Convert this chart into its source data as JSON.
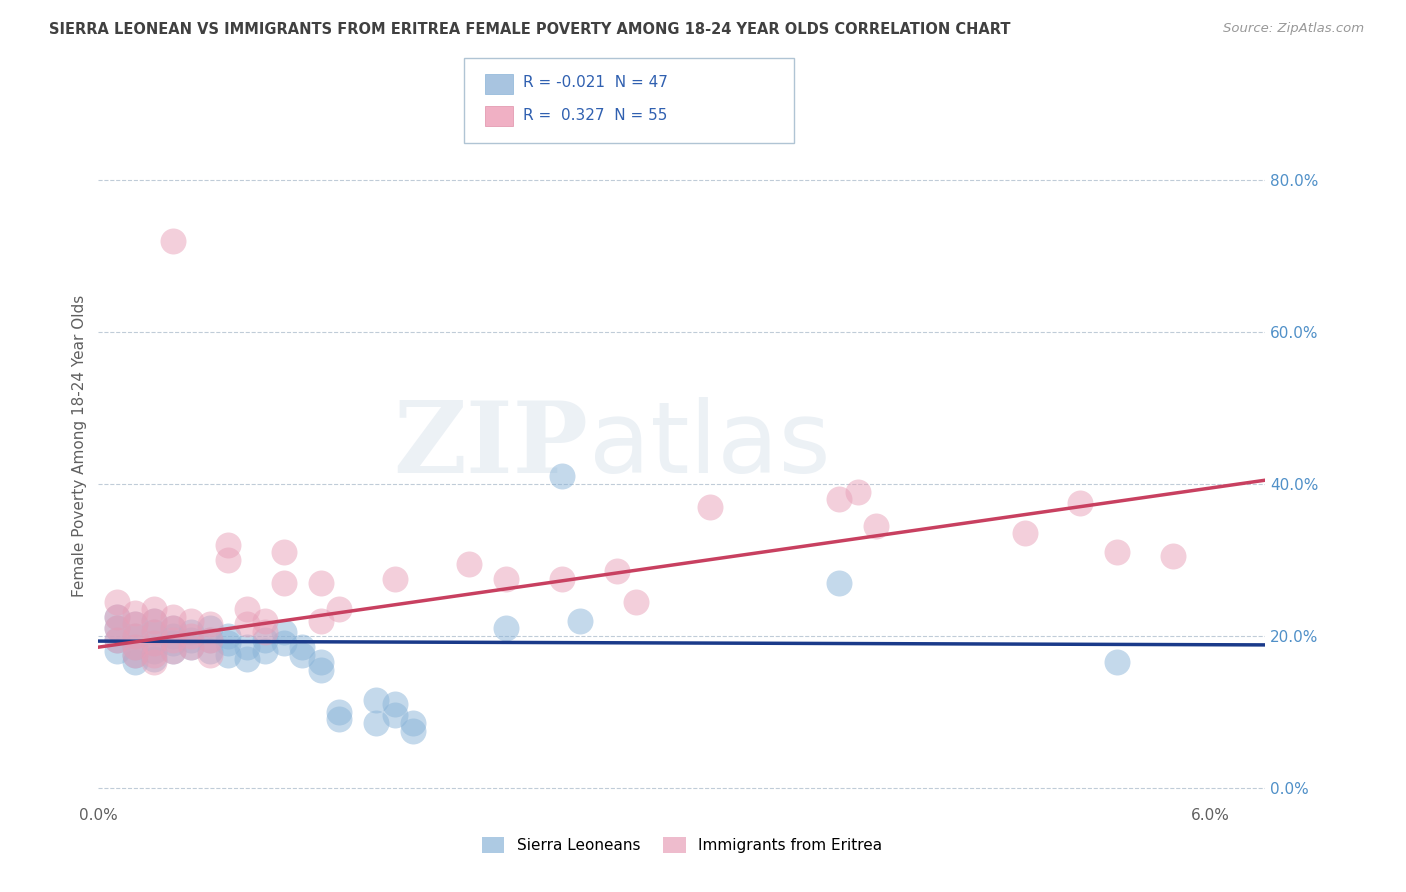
{
  "title": "SIERRA LEONEAN VS IMMIGRANTS FROM ERITREA FEMALE POVERTY AMONG 18-24 YEAR OLDS CORRELATION CHART",
  "source": "Source: ZipAtlas.com",
  "ylabel": "Female Poverty Among 18-24 Year Olds",
  "xlim": [
    0.0,
    0.063
  ],
  "ylim": [
    -0.02,
    0.92
  ],
  "yticks": [
    0.0,
    0.2,
    0.4,
    0.6,
    0.8
  ],
  "ytick_labels": [
    "0.0%",
    "20.0%",
    "40.0%",
    "60.0%",
    "80.0%"
  ],
  "xticks": [
    0.0,
    0.01,
    0.02,
    0.03,
    0.04,
    0.05,
    0.06
  ],
  "xtick_labels": [
    "0.0%",
    "",
    "",
    "",
    "",
    "",
    "6.0%"
  ],
  "watermark_zip": "ZIP",
  "watermark_atlas": "atlas",
  "sl_color": "#8ab4d8",
  "er_color": "#e8a0b8",
  "sl_line_color": "#1a3a8a",
  "er_line_color": "#c84060",
  "background_color": "#ffffff",
  "grid_color": "#c0ccd8",
  "title_color": "#404040",
  "axis_color": "#606060",
  "ytick_color": "#5090c8",
  "sl_line_y0": 0.193,
  "sl_line_y1": 0.188,
  "er_line_y0": 0.185,
  "er_line_y1": 0.405,
  "sl_scatter": [
    [
      0.001,
      0.225
    ],
    [
      0.001,
      0.21
    ],
    [
      0.001,
      0.195
    ],
    [
      0.001,
      0.18
    ],
    [
      0.002,
      0.215
    ],
    [
      0.002,
      0.2
    ],
    [
      0.002,
      0.185
    ],
    [
      0.002,
      0.175
    ],
    [
      0.002,
      0.165
    ],
    [
      0.003,
      0.22
    ],
    [
      0.003,
      0.205
    ],
    [
      0.003,
      0.19
    ],
    [
      0.003,
      0.18
    ],
    [
      0.003,
      0.17
    ],
    [
      0.004,
      0.21
    ],
    [
      0.004,
      0.2
    ],
    [
      0.004,
      0.19
    ],
    [
      0.004,
      0.18
    ],
    [
      0.005,
      0.205
    ],
    [
      0.005,
      0.195
    ],
    [
      0.005,
      0.185
    ],
    [
      0.006,
      0.21
    ],
    [
      0.006,
      0.195
    ],
    [
      0.006,
      0.18
    ],
    [
      0.007,
      0.2
    ],
    [
      0.007,
      0.19
    ],
    [
      0.007,
      0.175
    ],
    [
      0.008,
      0.185
    ],
    [
      0.008,
      0.17
    ],
    [
      0.009,
      0.195
    ],
    [
      0.009,
      0.18
    ],
    [
      0.01,
      0.205
    ],
    [
      0.01,
      0.19
    ],
    [
      0.011,
      0.185
    ],
    [
      0.011,
      0.175
    ],
    [
      0.012,
      0.165
    ],
    [
      0.012,
      0.155
    ],
    [
      0.013,
      0.1
    ],
    [
      0.013,
      0.09
    ],
    [
      0.015,
      0.115
    ],
    [
      0.015,
      0.085
    ],
    [
      0.016,
      0.11
    ],
    [
      0.016,
      0.095
    ],
    [
      0.017,
      0.085
    ],
    [
      0.017,
      0.075
    ],
    [
      0.022,
      0.21
    ],
    [
      0.025,
      0.41
    ],
    [
      0.026,
      0.22
    ],
    [
      0.04,
      0.27
    ],
    [
      0.055,
      0.165
    ]
  ],
  "er_scatter": [
    [
      0.001,
      0.245
    ],
    [
      0.001,
      0.225
    ],
    [
      0.001,
      0.21
    ],
    [
      0.001,
      0.195
    ],
    [
      0.002,
      0.23
    ],
    [
      0.002,
      0.215
    ],
    [
      0.002,
      0.2
    ],
    [
      0.002,
      0.185
    ],
    [
      0.002,
      0.175
    ],
    [
      0.003,
      0.235
    ],
    [
      0.003,
      0.22
    ],
    [
      0.003,
      0.205
    ],
    [
      0.003,
      0.19
    ],
    [
      0.003,
      0.175
    ],
    [
      0.003,
      0.165
    ],
    [
      0.004,
      0.225
    ],
    [
      0.004,
      0.21
    ],
    [
      0.004,
      0.195
    ],
    [
      0.004,
      0.18
    ],
    [
      0.005,
      0.22
    ],
    [
      0.005,
      0.2
    ],
    [
      0.005,
      0.185
    ],
    [
      0.006,
      0.215
    ],
    [
      0.006,
      0.195
    ],
    [
      0.006,
      0.175
    ],
    [
      0.007,
      0.32
    ],
    [
      0.007,
      0.3
    ],
    [
      0.008,
      0.235
    ],
    [
      0.008,
      0.215
    ],
    [
      0.009,
      0.22
    ],
    [
      0.009,
      0.205
    ],
    [
      0.01,
      0.31
    ],
    [
      0.01,
      0.27
    ],
    [
      0.012,
      0.27
    ],
    [
      0.012,
      0.22
    ],
    [
      0.013,
      0.235
    ],
    [
      0.016,
      0.275
    ],
    [
      0.02,
      0.295
    ],
    [
      0.022,
      0.275
    ],
    [
      0.025,
      0.275
    ],
    [
      0.028,
      0.285
    ],
    [
      0.029,
      0.245
    ],
    [
      0.033,
      0.37
    ],
    [
      0.04,
      0.38
    ],
    [
      0.041,
      0.39
    ],
    [
      0.042,
      0.345
    ],
    [
      0.004,
      0.72
    ],
    [
      0.05,
      0.335
    ],
    [
      0.053,
      0.375
    ],
    [
      0.055,
      0.31
    ],
    [
      0.058,
      0.305
    ]
  ]
}
